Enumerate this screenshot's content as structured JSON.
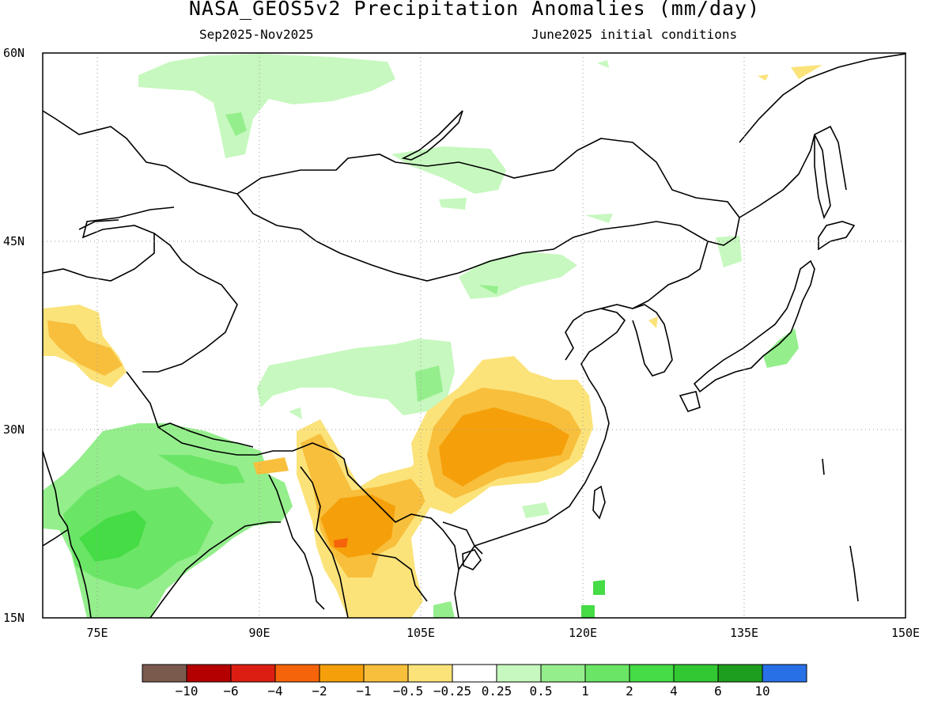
{
  "title": "NASA_GEOS5v2 Precipitation Anomalies (mm/day)",
  "period": "Sep2025-Nov2025",
  "init": "June2025 initial conditions",
  "lat_labels": [
    "60N",
    "45N",
    "30N",
    "15N"
  ],
  "lon_labels": [
    "75E",
    "90E",
    "105E",
    "120E",
    "135E",
    "150E"
  ],
  "colorbar": {
    "colors": [
      "#7b5a4e",
      "#b40000",
      "#dc1e12",
      "#f5640a",
      "#f5a00a",
      "#f8bf3c",
      "#fbe37a",
      "#ffffff",
      "#c7f8bf",
      "#94ee8c",
      "#6be566",
      "#45dc45",
      "#32c832",
      "#1e9e1e",
      "#2870e6"
    ],
    "labels": [
      "-10",
      "-6",
      "-4",
      "-2",
      "-1",
      "-0.5",
      "-0.25",
      "0.25",
      "0.5",
      "1",
      "2",
      "4",
      "6",
      "10"
    ]
  },
  "anomaly_regions": [
    {
      "name": "siberia-west",
      "level": "0.5"
    },
    {
      "name": "mongolia-north",
      "level": "0.5"
    },
    {
      "name": "inner-mongolia",
      "level": "0.5"
    },
    {
      "name": "tibet-north",
      "level": "0.5"
    },
    {
      "name": "india-nepal",
      "level": "1 to 2"
    },
    {
      "name": "south-china",
      "level": "-0.5 to -1"
    },
    {
      "name": "myanmar-yunnan",
      "level": "-0.5 to -2"
    },
    {
      "name": "pakistan-kashmir",
      "level": "-0.5 to -1"
    },
    {
      "name": "japan-honshu",
      "level": "0.5 to 1"
    }
  ]
}
